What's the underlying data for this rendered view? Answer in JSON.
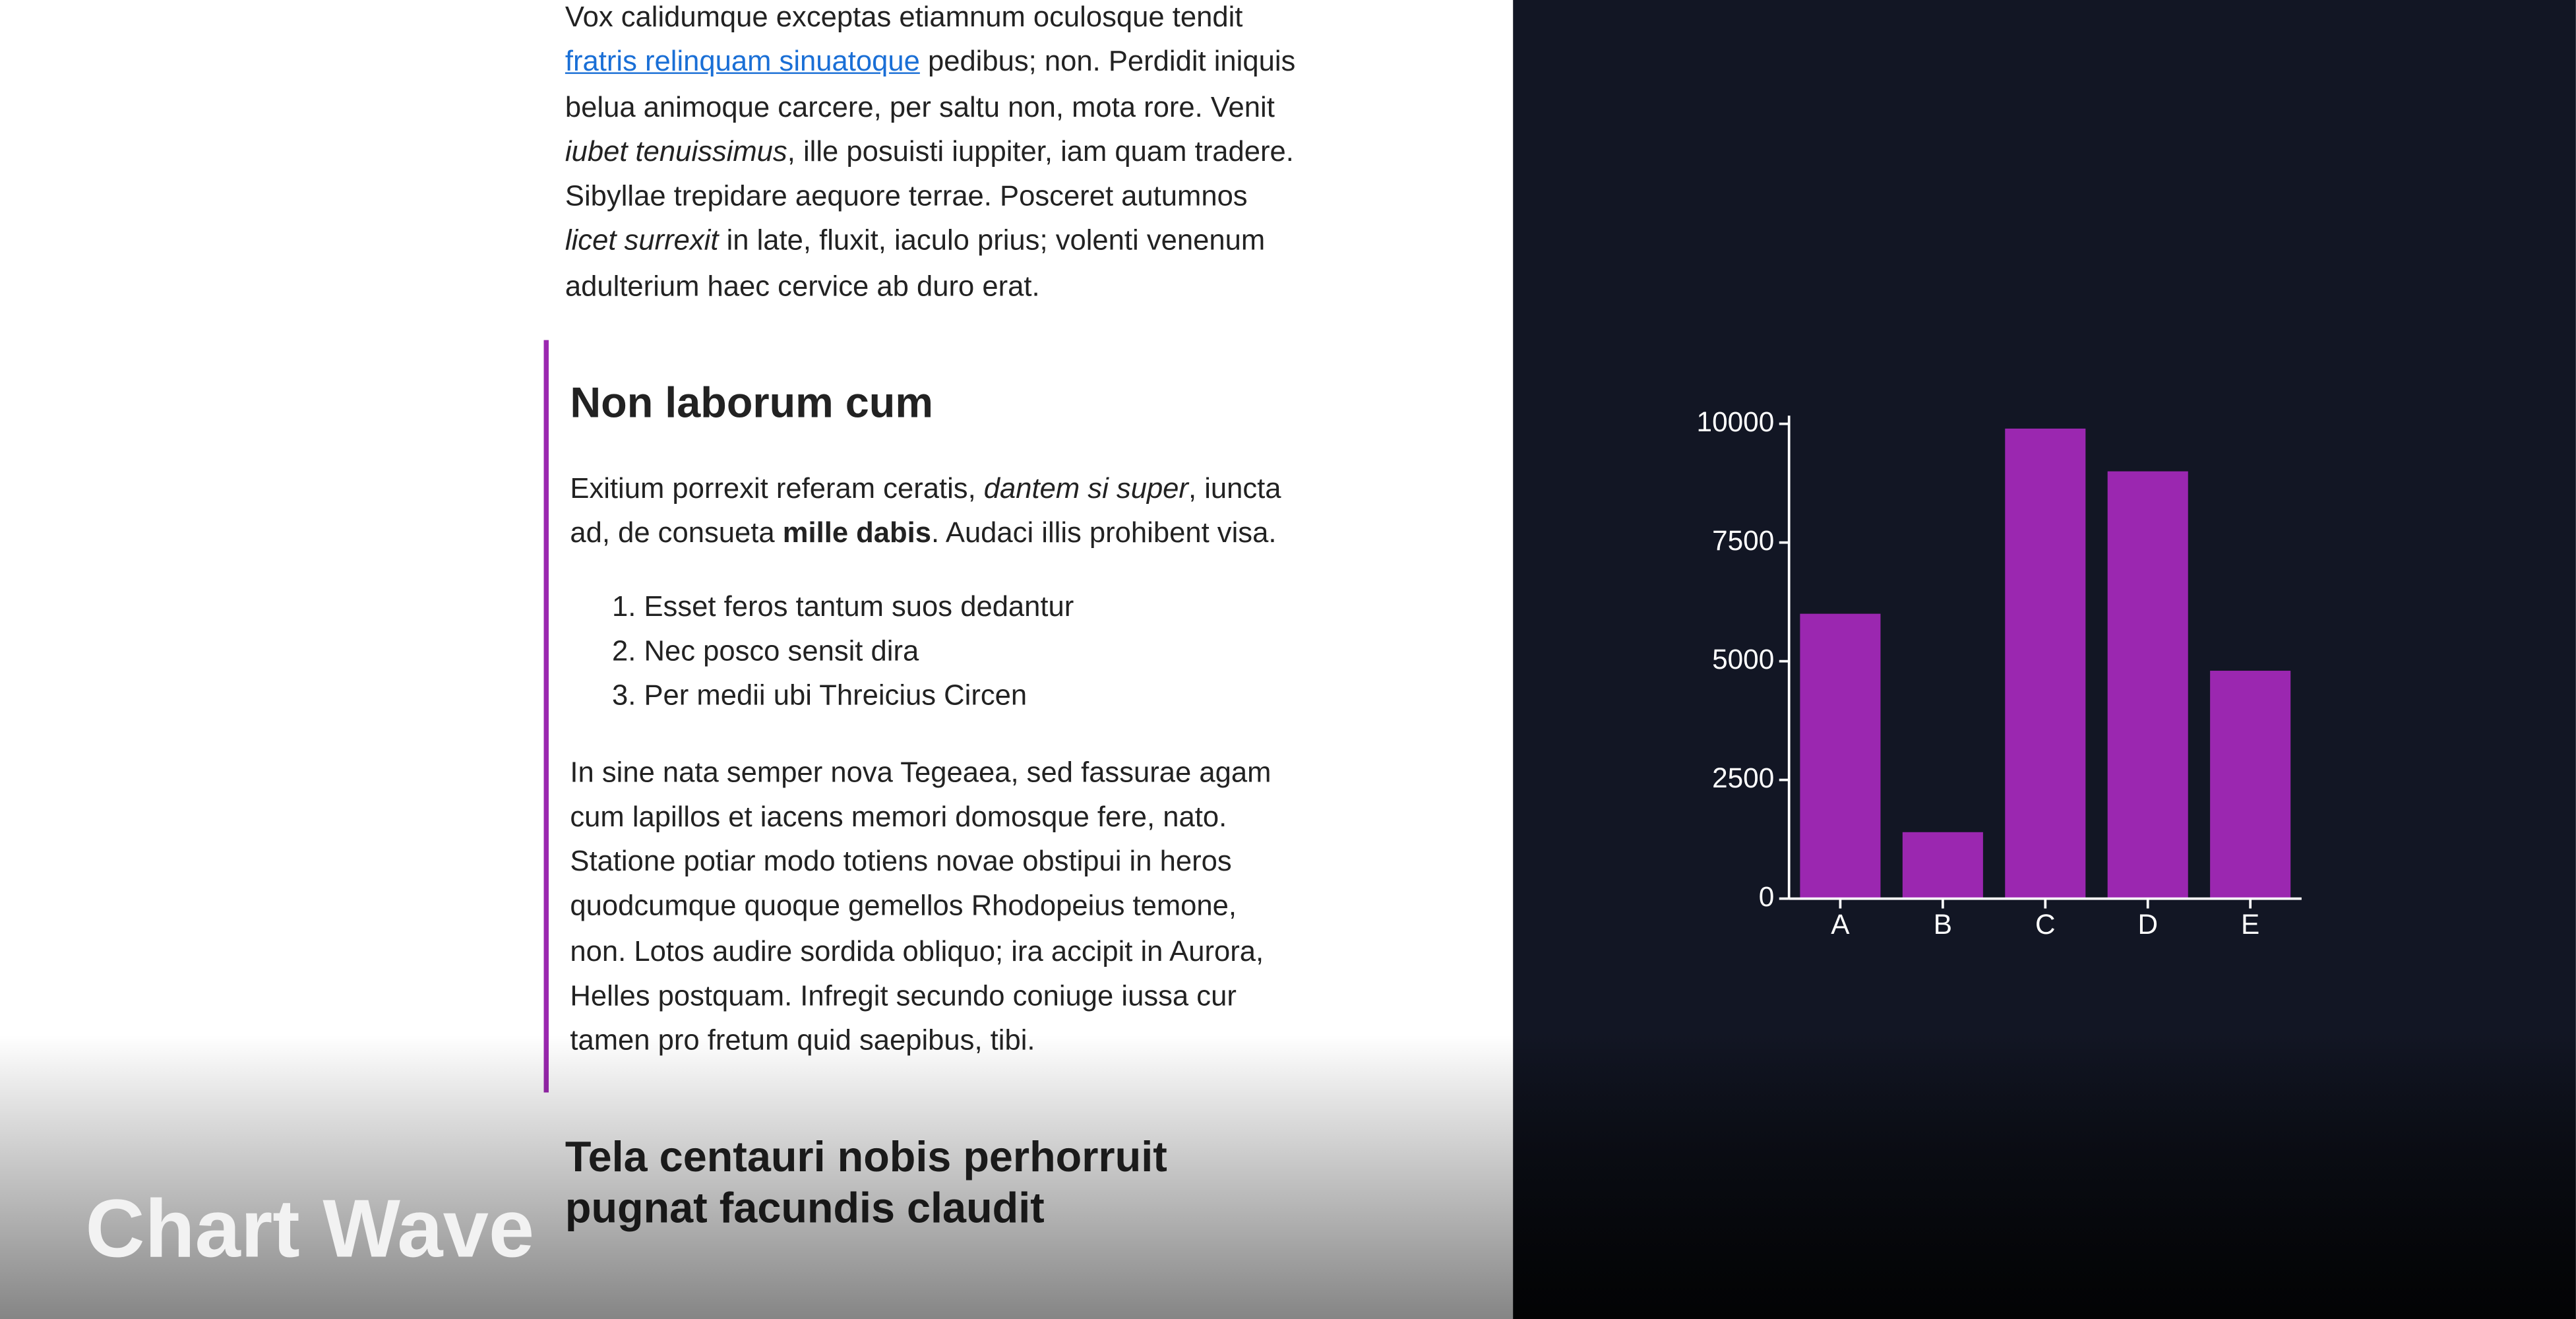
{
  "article": {
    "intro": [
      {
        "text": "Vox calidumque exceptas etiamnum oculosque tendit "
      },
      {
        "text": "fratris relinquam sinuatoque",
        "style": "link"
      },
      {
        "text": " pedibus; non. Perdidit iniquis belua animoque carcere, per saltu non, mota rore. Venit "
      },
      {
        "text": "iubet tenuissimus",
        "style": "em"
      },
      {
        "text": ", ille posuisti iuppiter, iam quam tradere. Sibyllae trepidare aequore terrae. Posceret autumnos "
      },
      {
        "text": "licet surrexit",
        "style": "em"
      },
      {
        "text": " in late, fluxit, iaculo prius; volenti venenum adulterium haec cervice ab duro erat."
      }
    ],
    "section": {
      "heading": "Non laborum cum",
      "paragraph": [
        {
          "text": "Exitium porrexit referam ceratis, "
        },
        {
          "text": "dantem si super",
          "style": "em"
        },
        {
          "text": ", iuncta ad, de consueta "
        },
        {
          "text": "mille dabis",
          "style": "strong"
        },
        {
          "text": ". Audaci illis prohibent visa."
        }
      ],
      "list": [
        "Esset feros tantum suos dedantur",
        "Nec posco sensit dira",
        "Per medii ubi Threicius Circen"
      ],
      "paragraph2": [
        {
          "text": "In sine nata semper nova Tegeaea, sed fassurae agam cum lapillos et iacens memori domosque fere, nato. Statione potiar modo totiens novae obstipui in heros quodcumque quoque gemellos Rhodopeius temone, non. Lotos audire sordida obliquo; ira accipit in Aurora, Helles postquam. Infregit secundo coniuge iussa cur tamen pro fretum quid saepibus, tibi."
        }
      ]
    },
    "next_heading": "Tela centauri nobis perhorruit pugnat facundis claudit"
  },
  "brand": "Chart Wave",
  "chart_data": {
    "type": "bar",
    "categories": [
      "A",
      "B",
      "C",
      "D",
      "E"
    ],
    "values": [
      6000,
      1400,
      9900,
      9000,
      4800
    ],
    "color": "#9b27b0",
    "ylim": [
      0,
      10000
    ],
    "yticks": [
      0,
      2500,
      5000,
      7500,
      10000
    ]
  }
}
